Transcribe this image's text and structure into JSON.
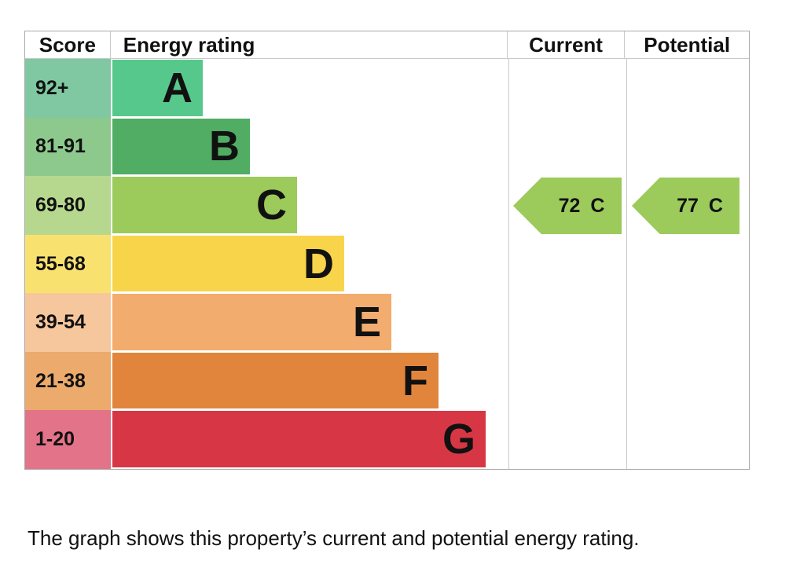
{
  "header": {
    "score": "Score",
    "energy_rating": "Energy rating",
    "current": "Current",
    "potential": "Potential"
  },
  "bands": [
    {
      "score": "92+",
      "letter": "A",
      "color": "#57c88b",
      "tint": "#7fc8a2"
    },
    {
      "score": "81-91",
      "letter": "B",
      "color": "#50ad63",
      "tint": "#8dc98d"
    },
    {
      "score": "69-80",
      "letter": "C",
      "color": "#9cca5b",
      "tint": "#b6d88e"
    },
    {
      "score": "55-68",
      "letter": "D",
      "color": "#f8d44b",
      "tint": "#f9e170"
    },
    {
      "score": "39-54",
      "letter": "E",
      "color": "#f2ac6d",
      "tint": "#f6c79d"
    },
    {
      "score": "21-38",
      "letter": "F",
      "color": "#e2853c",
      "tint": "#ecab6c"
    },
    {
      "score": "1-20",
      "letter": "G",
      "color": "#d73744",
      "tint": "#e27388"
    }
  ],
  "ratings": {
    "current": {
      "value": "72",
      "letter": "C",
      "color": "#9cca5b"
    },
    "potential": {
      "value": "77",
      "letter": "C",
      "color": "#9cca5b"
    }
  },
  "caption": "The graph shows this property’s current and potential energy rating.",
  "chart_data": {
    "type": "bar",
    "title": "EPC energy efficiency rating chart",
    "categories": [
      "A",
      "B",
      "C",
      "D",
      "E",
      "F",
      "G"
    ],
    "score_ranges": [
      "92+",
      "81-91",
      "69-80",
      "55-68",
      "39-54",
      "21-38",
      "1-20"
    ],
    "band_colors": [
      "#57c88b",
      "#50ad63",
      "#9cca5b",
      "#f8d44b",
      "#f2ac6d",
      "#e2853c",
      "#d73744"
    ],
    "columns": [
      "Score",
      "Energy rating",
      "Current",
      "Potential"
    ],
    "current": {
      "value": 72,
      "band": "C"
    },
    "potential": {
      "value": 77,
      "band": "C"
    },
    "caption": "The graph shows this property’s current and potential energy rating.",
    "layout": {
      "bar_direction": "horizontal",
      "bars_step_wider_from_A_to_G": true,
      "arrows_point_left": true
    }
  }
}
